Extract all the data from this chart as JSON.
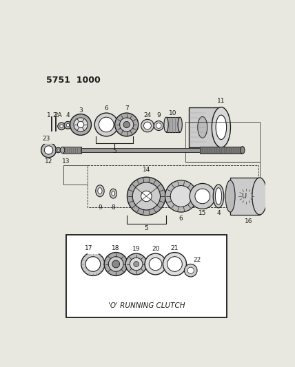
{
  "bg_color": "#e8e8e0",
  "title_code": "5751  1000",
  "line_color": "#1a1a1a",
  "box_label": "'O' RUNNING CLUTCH",
  "label_fontsize": 6.5,
  "title_fontsize": 9
}
